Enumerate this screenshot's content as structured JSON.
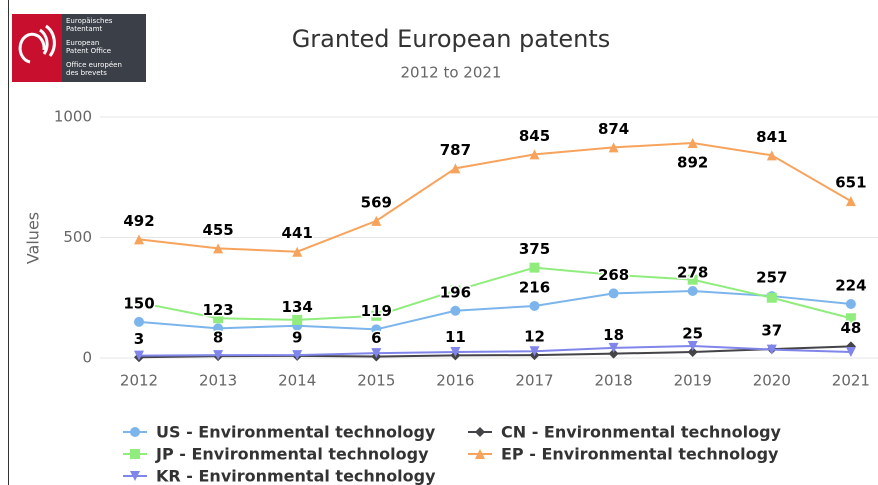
{
  "logo": {
    "lines": [
      "Europäisches",
      "Patentamt",
      "European",
      "Patent Office",
      "Office européen",
      "des brevets"
    ]
  },
  "chart_data": {
    "type": "line",
    "title": "Granted European patents",
    "subtitle": "2012 to 2021",
    "y_label": "Values",
    "categories": [
      "2012",
      "2013",
      "2014",
      "2015",
      "2016",
      "2017",
      "2018",
      "2019",
      "2020",
      "2021"
    ],
    "ylim": [
      0,
      1000
    ],
    "yticks": [
      0,
      500,
      1000
    ],
    "grid": true,
    "series": [
      {
        "name": "US - Environmental technology",
        "color": "#7cb5ec",
        "marker": "circle",
        "data_labels": true,
        "values": [
          150,
          123,
          134,
          119,
          196,
          216,
          268,
          278,
          257,
          224
        ]
      },
      {
        "name": "CN - Environmental technology",
        "color": "#434348",
        "marker": "diamond",
        "data_labels": true,
        "values": [
          3,
          8,
          9,
          6,
          11,
          12,
          18,
          25,
          37,
          48
        ]
      },
      {
        "name": "JP - Environmental technology",
        "color": "#90ed7d",
        "marker": "square",
        "data_labels": false,
        "values": [
          230,
          165,
          158,
          175,
          280,
          375,
          345,
          325,
          250,
          165
        ],
        "value_labels": [
          null,
          null,
          null,
          null,
          null,
          "375",
          null,
          null,
          null,
          null
        ]
      },
      {
        "name": "EP - Environmental technology",
        "color": "#f7a35c",
        "marker": "triangle",
        "data_labels": true,
        "values": [
          492,
          455,
          441,
          569,
          787,
          845,
          874,
          892,
          841,
          651
        ]
      },
      {
        "name": "KR - Environmental technology",
        "color": "#8085e9",
        "marker": "triangle-down",
        "data_labels": false,
        "values": [
          10,
          12,
          12,
          20,
          25,
          28,
          42,
          50,
          35,
          25
        ]
      }
    ]
  }
}
